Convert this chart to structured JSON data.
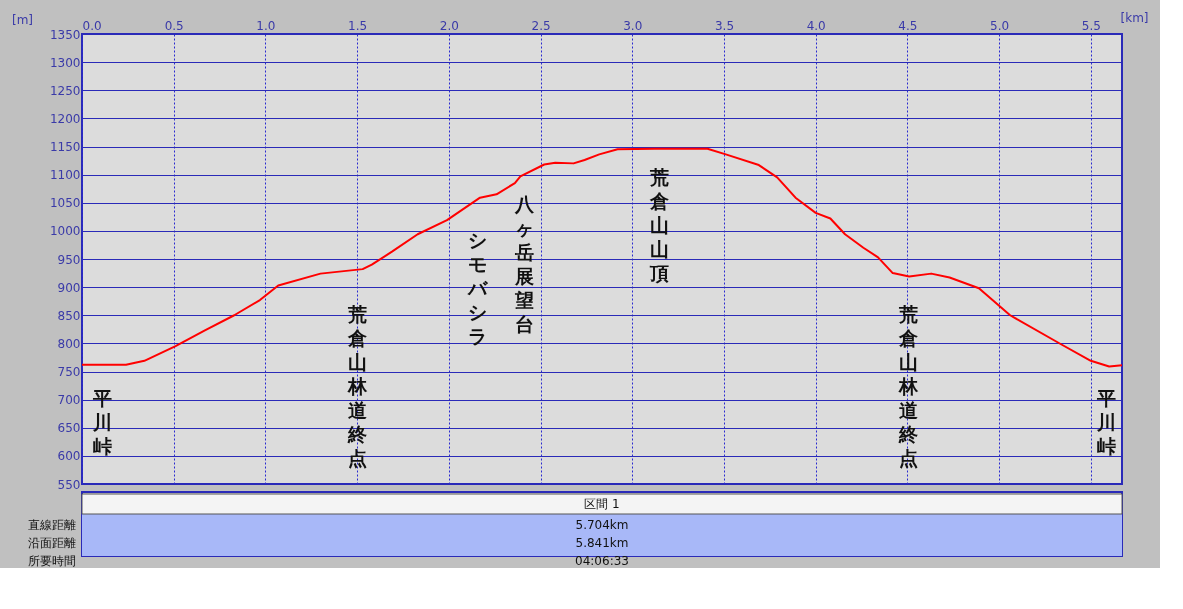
{
  "chart_data": {
    "type": "line",
    "xlabel": "[km]",
    "ylabel": "[m]",
    "x": [
      0,
      0.08,
      0.24,
      0.34,
      0.51,
      0.67,
      0.83,
      0.97,
      1.07,
      1.3,
      1.53,
      1.58,
      1.69,
      1.83,
      1.99,
      2.17,
      2.26,
      2.36,
      2.39,
      2.52,
      2.58,
      2.68,
      2.74,
      2.82,
      2.92,
      3.12,
      3.41,
      3.51,
      3.69,
      3.79,
      3.89,
      4.0,
      4.08,
      4.16,
      4.26,
      4.34,
      4.42,
      4.51,
      4.63,
      4.73,
      4.89,
      5.06,
      5.34,
      5.5,
      5.6,
      5.67
    ],
    "series": [
      {
        "color": "#ff0000",
        "values": [
          762,
          762,
          762,
          769,
          795,
          823,
          850,
          877,
          903,
          924,
          932,
          940,
          963,
          994,
          1019,
          1059,
          1065,
          1085,
          1097,
          1118,
          1121,
          1120,
          1126,
          1136,
          1145,
          1146,
          1146,
          1136,
          1117,
          1095,
          1059,
          1032,
          1022,
          994,
          970,
          953,
          925,
          919,
          924,
          917,
          898,
          850,
          798,
          769,
          759,
          761
        ]
      }
    ],
    "xlim": [
      0,
      5.67
    ],
    "xticks": [
      {
        "value": 0,
        "label": "0.0"
      },
      0.5,
      {
        "value": 1,
        "label": "1.0"
      },
      1.5,
      {
        "value": 2,
        "label": "2.0"
      },
      2.5,
      {
        "value": 3,
        "label": "3.0"
      },
      3.5,
      {
        "value": 4,
        "label": "4.0"
      },
      4.5,
      {
        "value": 5,
        "label": "5.0"
      },
      5.5
    ],
    "ylim": [
      550,
      1350
    ],
    "yticks": [
      550,
      600,
      650,
      700,
      750,
      800,
      850,
      900,
      950,
      1000,
      1050,
      1100,
      1150,
      1200,
      1250,
      1300,
      1350
    ],
    "grid": true,
    "marker": "none",
    "line_style": "solid",
    "annotations": [
      "平川峠",
      "荒倉山林道終点",
      "シモバシラ",
      "八ヶ岳展望台",
      "荒倉山山頂",
      "荒倉山林道終点",
      "平川峠",
      "区間 1",
      "直線距離",
      "5.704km",
      "沿面距離",
      "5.841km",
      "所要時間",
      "04:06:33"
    ]
  }
}
